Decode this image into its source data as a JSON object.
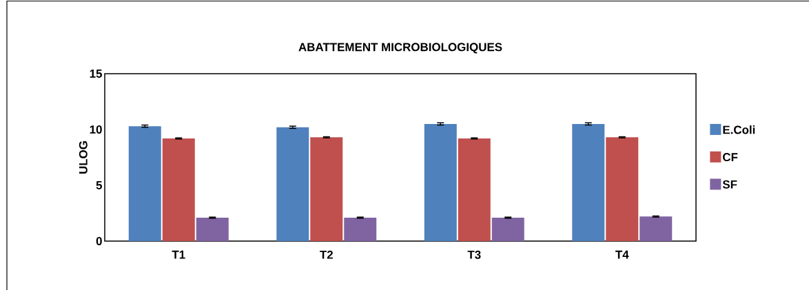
{
  "chart_data": {
    "type": "bar",
    "title": "ABATTEMENT MICROBIOLOGIQUES",
    "ylabel": "ULOG",
    "categories": [
      "T1",
      "T2",
      "T3",
      "T4"
    ],
    "series": [
      {
        "name": "E.Coli",
        "color": "#4f81bd",
        "values": [
          10.3,
          10.2,
          10.5,
          10.5
        ],
        "errors": [
          0.1,
          0.1,
          0.1,
          0.1
        ]
      },
      {
        "name": "CF",
        "color": "#c0504d",
        "values": [
          9.2,
          9.3,
          9.2,
          9.3
        ],
        "errors": [
          0.05,
          0.05,
          0.05,
          0.05
        ]
      },
      {
        "name": "SF",
        "color": "#8064a2",
        "values": [
          2.1,
          2.1,
          2.1,
          2.2
        ],
        "errors": [
          0.05,
          0.05,
          0.05,
          0.05
        ]
      }
    ],
    "ylim": [
      0,
      15
    ],
    "yticks": [
      0,
      5,
      10,
      15
    ],
    "legend": "right",
    "grid": false
  }
}
